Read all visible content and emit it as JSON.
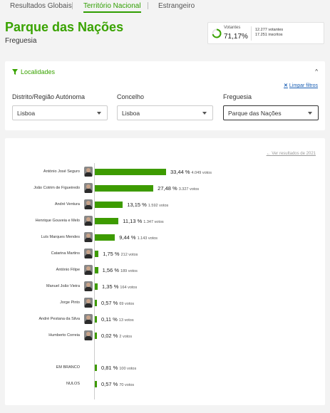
{
  "tabs": [
    "Resultados Globais",
    "Território Nacional",
    "Estrangeiro"
  ],
  "page": {
    "title": "Parque das Nações",
    "subtitle": "Freguesia"
  },
  "voters": {
    "label": "Votantes",
    "percent": "71,17%",
    "votantes": "12.277 votantes",
    "inscritos": "17.251 inscritos",
    "fraction": 0.7117
  },
  "localidades": {
    "heading": "Localidades",
    "clear": "Limpar filtros",
    "filters": [
      {
        "label": "Distrito/Região Autónoma",
        "value": "Lisboa"
      },
      {
        "label": "Concelho",
        "value": "Lisboa"
      },
      {
        "label": "Freguesia",
        "value": "Parque das Nações"
      }
    ]
  },
  "results": {
    "prev_link": "Ver resultados de 2021"
  },
  "colors": {
    "accent": "#39a300",
    "bar": "#3d9b00"
  },
  "chart_data": {
    "type": "bar",
    "orientation": "horizontal",
    "categories": [
      "António José Seguro",
      "João Cotrim de Figueiredo",
      "André Ventura",
      "Henrique Gouveia e Melo",
      "Luís Marques Mendes",
      "Catarina Martins",
      "António Filipe",
      "Manuel João Vieira",
      "Jorge Pinto",
      "André Pestana da Silva",
      "Humberto Correia",
      "EM BRANCO",
      "NULOS"
    ],
    "values": [
      33.44,
      27.48,
      13.15,
      11.13,
      9.44,
      1.75,
      1.56,
      1.35,
      0.57,
      0.11,
      0.02,
      0.81,
      0.57
    ],
    "pct_labels": [
      "33,44 %",
      "27,48 %",
      "13,15 %",
      "11,13 %",
      "9,44 %",
      "1,75 %",
      "1,56 %",
      "1,35 %",
      "0,57 %",
      "0,11 %",
      "0,02 %",
      "0,81 %",
      "0,57 %"
    ],
    "votes_labels": [
      "4.049 votos",
      "3.327 votos",
      "1.592 votos",
      "1.347 votos",
      "1.143 votos",
      "212 votos",
      "189 votos",
      "164 votos",
      "69 votos",
      "13 votos",
      "2 votos",
      "100 votos",
      "70 votos"
    ],
    "has_photo": [
      true,
      true,
      true,
      true,
      true,
      true,
      true,
      true,
      true,
      true,
      true,
      false,
      false
    ]
  }
}
